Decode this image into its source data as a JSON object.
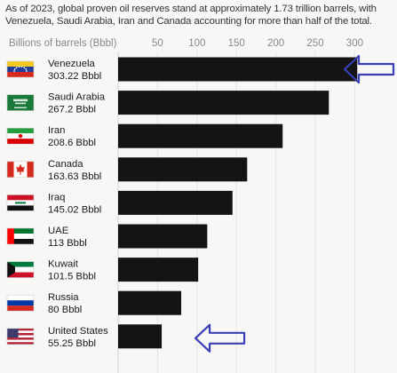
{
  "caption": "As of 2023, global proven oil reserves stand at approximately 1.73 trillion barrels, with Venezuela, Saudi Arabia, Iran and Canada accounting for more than half of the total.",
  "chart_data": {
    "type": "bar",
    "orientation": "horizontal",
    "units_label": "Billions of barrels (Bbbl)",
    "xlim": [
      0,
      310
    ],
    "ticks": [
      50,
      100,
      150,
      200,
      250,
      300
    ],
    "grid": true,
    "bar_color": "#141414",
    "categories": [
      "Venezuela",
      "Saudi Arabia",
      "Iran",
      "Canada",
      "Iraq",
      "UAE",
      "Kuwait",
      "Russia",
      "United States"
    ],
    "values": [
      303.22,
      267.2,
      208.6,
      163.63,
      145.02,
      113,
      101.5,
      80,
      55.25
    ],
    "value_labels": [
      "303.22 Bbbl",
      "267.2 Bbbl",
      "208.6 Bbbl",
      "163.63 Bbbl",
      "145.02 Bbbl",
      "113 Bbbl",
      "101.5 Bbbl",
      "80 Bbbl",
      "55.25 Bbbl"
    ],
    "flags": [
      "venezuela-flag",
      "saudi-arabia-flag",
      "iran-flag",
      "canada-flag",
      "iraq-flag",
      "uae-flag",
      "kuwait-flag",
      "russia-flag",
      "united-states-flag"
    ],
    "highlight_arrows": {
      "color": "#3a3fb5",
      "targets": [
        "Venezuela",
        "United States"
      ]
    }
  }
}
